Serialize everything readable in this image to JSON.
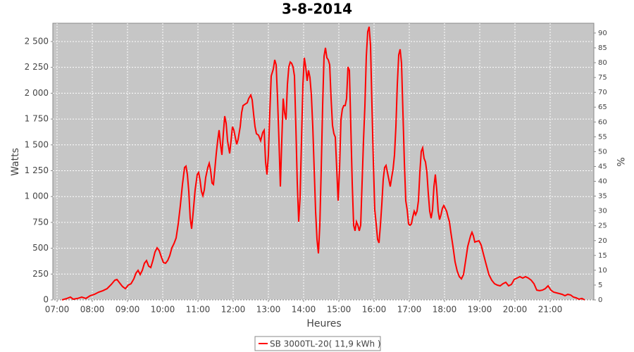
{
  "chart_data": {
    "type": "line",
    "title": "3-8-2014",
    "xlabel": "Heures",
    "ylabel": "Watts",
    "y2label": "%",
    "x": [
      7.14,
      7.28,
      7.38,
      7.46,
      7.58,
      7.7,
      7.82,
      7.94,
      8.06,
      8.18,
      8.3,
      8.42,
      8.54,
      8.64,
      8.7,
      8.78,
      8.86,
      8.94,
      9.02,
      9.1,
      9.18,
      9.24,
      9.3,
      9.36,
      9.42,
      9.48,
      9.54,
      9.6,
      9.66,
      9.72,
      9.78,
      9.84,
      9.9,
      9.96,
      10.02,
      10.08,
      10.14,
      10.2,
      10.26,
      10.32,
      10.38,
      10.44,
      10.5,
      10.56,
      10.62,
      10.66,
      10.7,
      10.74,
      10.78,
      10.82,
      10.86,
      10.92,
      10.98,
      11.02,
      11.06,
      11.1,
      11.14,
      11.18,
      11.22,
      11.28,
      11.32,
      11.36,
      11.4,
      11.44,
      11.48,
      11.52,
      11.56,
      11.6,
      11.64,
      11.68,
      11.72,
      11.76,
      11.8,
      11.84,
      11.9,
      11.94,
      11.98,
      12.02,
      12.06,
      12.1,
      12.14,
      12.2,
      12.24,
      12.28,
      12.34,
      12.4,
      12.44,
      12.5,
      12.54,
      12.58,
      12.62,
      12.66,
      12.72,
      12.78,
      12.84,
      12.88,
      12.92,
      12.96,
      13.0,
      13.04,
      13.08,
      13.14,
      13.18,
      13.22,
      13.26,
      13.3,
      13.34,
      13.38,
      13.42,
      13.46,
      13.5,
      13.54,
      13.58,
      13.62,
      13.66,
      13.7,
      13.74,
      13.78,
      13.82,
      13.86,
      13.9,
      13.94,
      13.98,
      14.02,
      14.06,
      14.1,
      14.14,
      14.18,
      14.22,
      14.26,
      14.3,
      14.34,
      14.38,
      14.42,
      14.46,
      14.5,
      14.54,
      14.58,
      14.62,
      14.66,
      14.7,
      14.74,
      14.78,
      14.82,
      14.86,
      14.9,
      14.94,
      14.98,
      15.02,
      15.06,
      15.1,
      15.14,
      15.18,
      15.22,
      15.26,
      15.3,
      15.34,
      15.38,
      15.42,
      15.46,
      15.5,
      15.54,
      15.58,
      15.62,
      15.66,
      15.7,
      15.74,
      15.78,
      15.82,
      15.86,
      15.9,
      15.94,
      15.98,
      16.02,
      16.06,
      16.1,
      16.14,
      16.18,
      16.22,
      16.26,
      16.3,
      16.34,
      16.38,
      16.42,
      16.46,
      16.5,
      16.54,
      16.58,
      16.62,
      16.66,
      16.7,
      16.74,
      16.78,
      16.82,
      16.86,
      16.9,
      16.94,
      16.98,
      17.02,
      17.06,
      17.1,
      17.14,
      17.18,
      17.22,
      17.26,
      17.3,
      17.34,
      17.38,
      17.42,
      17.46,
      17.5,
      17.54,
      17.58,
      17.62,
      17.66,
      17.7,
      17.74,
      17.78,
      17.82,
      17.86,
      17.9,
      17.94,
      17.98,
      18.02,
      18.06,
      18.1,
      18.14,
      18.18,
      18.24,
      18.3,
      18.36,
      18.42,
      18.48,
      18.54,
      18.6,
      18.66,
      18.74,
      18.78,
      18.82,
      18.86,
      18.9,
      18.98,
      19.04,
      19.1,
      19.18,
      19.26,
      19.34,
      19.42,
      19.5,
      19.58,
      19.66,
      19.74,
      19.82,
      19.9,
      19.98,
      20.06,
      20.14,
      20.22,
      20.3,
      20.38,
      20.46,
      20.54,
      20.62,
      20.7,
      20.78,
      20.86,
      20.94,
      21.02,
      21.1,
      21.18,
      21.26,
      21.34,
      21.42,
      21.5,
      21.58,
      21.66,
      21.74,
      21.82,
      21.9,
      21.98
    ],
    "series": [
      {
        "name": "SB 3000TL-20( 11,9 kWh )",
        "color": "#ff0000",
        "values": [
          0,
          14,
          27,
          7,
          14,
          27,
          14,
          41,
          54,
          75,
          89,
          109,
          150,
          191,
          198,
          163,
          129,
          109,
          143,
          157,
          204,
          259,
          286,
          245,
          286,
          354,
          381,
          327,
          313,
          381,
          463,
          504,
          477,
          416,
          361,
          354,
          381,
          429,
          504,
          545,
          599,
          736,
          913,
          1117,
          1281,
          1294,
          1213,
          1049,
          790,
          688,
          831,
          1063,
          1213,
          1233,
          1158,
          1049,
          1008,
          1063,
          1185,
          1281,
          1322,
          1253,
          1131,
          1117,
          1267,
          1417,
          1540,
          1642,
          1505,
          1403,
          1608,
          1778,
          1710,
          1540,
          1417,
          1540,
          1676,
          1642,
          1574,
          1505,
          1553,
          1676,
          1812,
          1880,
          1894,
          1907,
          1948,
          1982,
          1935,
          1798,
          1676,
          1608,
          1594,
          1540,
          1621,
          1642,
          1335,
          1213,
          1403,
          1812,
          2166,
          2234,
          2323,
          2275,
          1948,
          1540,
          1097,
          1540,
          1948,
          1812,
          1744,
          2084,
          2255,
          2302,
          2289,
          2255,
          2166,
          1676,
          1131,
          756,
          995,
          1540,
          2084,
          2343,
          2255,
          2119,
          2221,
          2152,
          1982,
          1676,
          1267,
          858,
          586,
          450,
          722,
          1267,
          1880,
          2357,
          2439,
          2343,
          2323,
          2275,
          1948,
          1689,
          1608,
          1574,
          1267,
          960,
          1267,
          1744,
          1846,
          1880,
          1880,
          1948,
          2255,
          2221,
          1676,
          1131,
          722,
          668,
          756,
          722,
          668,
          722,
          1131,
          1540,
          1880,
          2357,
          2595,
          2643,
          2459,
          1880,
          1335,
          872,
          736,
          586,
          552,
          722,
          926,
          1165,
          1281,
          1301,
          1233,
          1165,
          1097,
          1185,
          1267,
          1403,
          1676,
          2084,
          2371,
          2425,
          2289,
          1812,
          1335,
          960,
          872,
          736,
          722,
          736,
          804,
          858,
          824,
          858,
          960,
          1233,
          1437,
          1471,
          1369,
          1335,
          1233,
          1029,
          858,
          790,
          872,
          1097,
          1213,
          1063,
          858,
          777,
          824,
          886,
          913,
          886,
          858,
          804,
          756,
          654,
          518,
          368,
          279,
          225,
          204,
          245,
          381,
          518,
          620,
          654,
          620,
          559,
          565,
          572,
          531,
          450,
          347,
          245,
          191,
          157,
          143,
          136,
          157,
          170,
          136,
          150,
          198,
          211,
          225,
          211,
          225,
          211,
          191,
          157,
          95,
          89,
          95,
          109,
          136,
          95,
          75,
          68,
          61,
          54,
          41,
          54,
          48,
          27,
          20,
          7,
          14,
          0
        ]
      }
    ],
    "xlim": [
      6.88,
      22.24
    ],
    "xticks": [
      {
        "value": 7,
        "label": "07:00"
      },
      {
        "value": 8,
        "label": "08:00"
      },
      {
        "value": 9,
        "label": "09:00"
      },
      {
        "value": 10,
        "label": "10:00"
      },
      {
        "value": 11,
        "label": "11:00"
      },
      {
        "value": 12,
        "label": "12:00"
      },
      {
        "value": 13,
        "label": "13:00"
      },
      {
        "value": 14,
        "label": "14:00"
      },
      {
        "value": 15,
        "label": "15:00"
      },
      {
        "value": 16,
        "label": "16:00"
      },
      {
        "value": 17,
        "label": "17:00"
      },
      {
        "value": 18,
        "label": "18:00"
      },
      {
        "value": 19,
        "label": "19:00"
      },
      {
        "value": 20,
        "label": "20:00"
      },
      {
        "value": 21,
        "label": "21:00"
      }
    ],
    "ylim": [
      0,
      2677
    ],
    "yticks": [
      0,
      250,
      500,
      750,
      {
        "value": 1000,
        "label": "1 000"
      },
      {
        "value": 1250,
        "label": "1 250"
      },
      {
        "value": 1500,
        "label": "1 500"
      },
      {
        "value": 1750,
        "label": "1 750"
      },
      {
        "value": 2000,
        "label": "2 000"
      },
      {
        "value": 2250,
        "label": "2 250"
      },
      {
        "value": 2500,
        "label": "2 500"
      }
    ],
    "y2lim": [
      0,
      93.3
    ],
    "y2ticks": [
      0,
      5,
      10,
      15,
      20,
      25,
      30,
      35,
      40,
      45,
      50,
      55,
      60,
      65,
      70,
      75,
      80,
      85,
      90
    ],
    "grid": true,
    "background": "#c6c6c6",
    "legend": "bottom"
  }
}
